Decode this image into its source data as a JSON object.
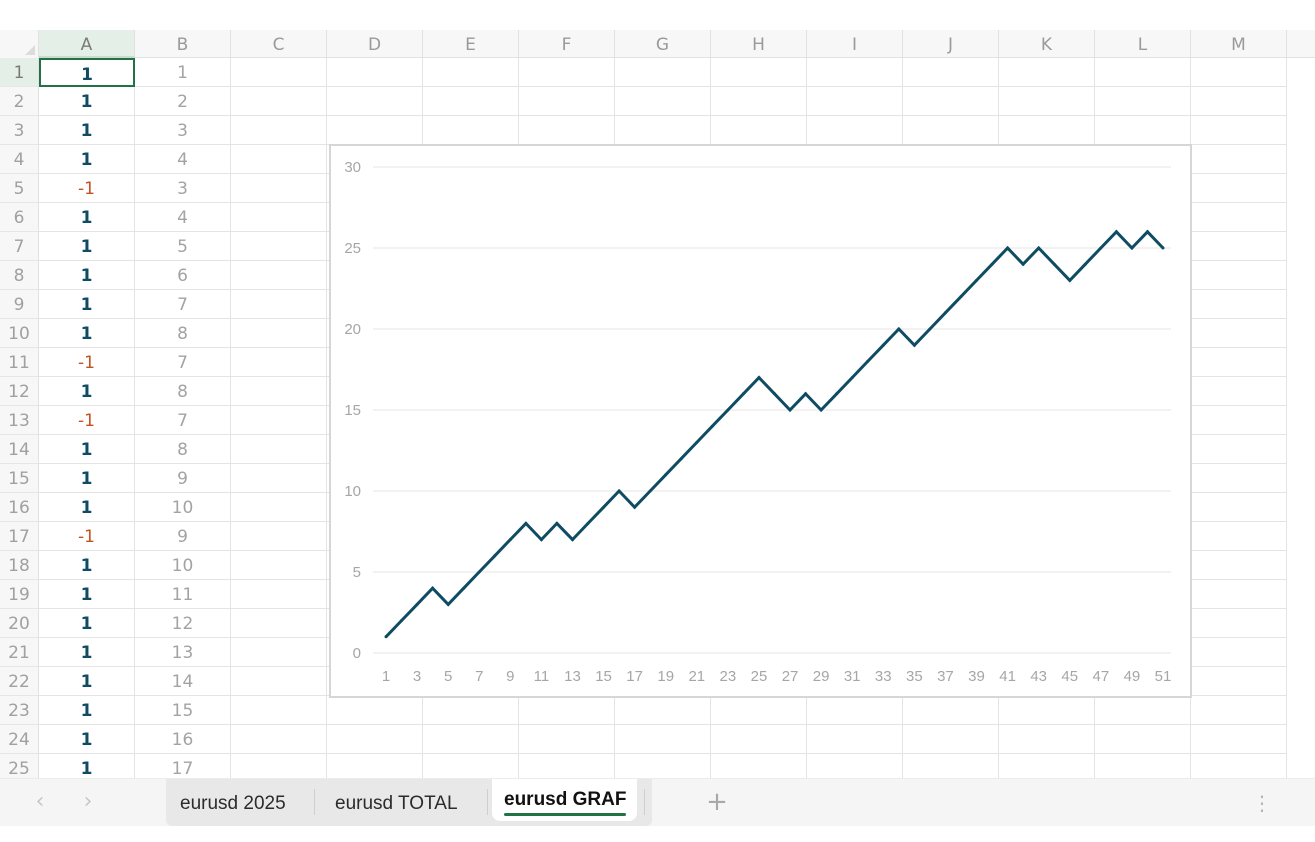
{
  "columns": [
    "A",
    "B",
    "C",
    "D",
    "E",
    "F",
    "G",
    "H",
    "I",
    "J",
    "K",
    "L",
    "M"
  ],
  "rows": [
    {
      "n": "1",
      "a": "1",
      "b": "1"
    },
    {
      "n": "2",
      "a": "1",
      "b": "2"
    },
    {
      "n": "3",
      "a": "1",
      "b": "3"
    },
    {
      "n": "4",
      "a": "1",
      "b": "4"
    },
    {
      "n": "5",
      "a": "-1",
      "b": "3"
    },
    {
      "n": "6",
      "a": "1",
      "b": "4"
    },
    {
      "n": "7",
      "a": "1",
      "b": "5"
    },
    {
      "n": "8",
      "a": "1",
      "b": "6"
    },
    {
      "n": "9",
      "a": "1",
      "b": "7"
    },
    {
      "n": "10",
      "a": "1",
      "b": "8"
    },
    {
      "n": "11",
      "a": "-1",
      "b": "7"
    },
    {
      "n": "12",
      "a": "1",
      "b": "8"
    },
    {
      "n": "13",
      "a": "-1",
      "b": "7"
    },
    {
      "n": "14",
      "a": "1",
      "b": "8"
    },
    {
      "n": "15",
      "a": "1",
      "b": "9"
    },
    {
      "n": "16",
      "a": "1",
      "b": "10"
    },
    {
      "n": "17",
      "a": "-1",
      "b": "9"
    },
    {
      "n": "18",
      "a": "1",
      "b": "10"
    },
    {
      "n": "19",
      "a": "1",
      "b": "11"
    },
    {
      "n": "20",
      "a": "1",
      "b": "12"
    },
    {
      "n": "21",
      "a": "1",
      "b": "13"
    },
    {
      "n": "22",
      "a": "1",
      "b": "14"
    },
    {
      "n": "23",
      "a": "1",
      "b": "15"
    },
    {
      "n": "24",
      "a": "1",
      "b": "16"
    },
    {
      "n": "25",
      "a": "1",
      "b": "17"
    }
  ],
  "selection": {
    "cell": "A1"
  },
  "chart_data": {
    "type": "line",
    "x": [
      1,
      2,
      3,
      4,
      5,
      6,
      7,
      8,
      9,
      10,
      11,
      12,
      13,
      14,
      15,
      16,
      17,
      18,
      19,
      20,
      21,
      22,
      23,
      24,
      25,
      26,
      27,
      28,
      29,
      30,
      31,
      32,
      33,
      34,
      35,
      36,
      37,
      38,
      39,
      40,
      41,
      42,
      43,
      44,
      45,
      46,
      47,
      48,
      49,
      50,
      51
    ],
    "x_tick_labels": [
      "1",
      "3",
      "5",
      "7",
      "9",
      "11",
      "13",
      "15",
      "17",
      "19",
      "21",
      "23",
      "25",
      "27",
      "29",
      "31",
      "33",
      "35",
      "37",
      "39",
      "41",
      "43",
      "45",
      "47",
      "49",
      "51"
    ],
    "y_ticks": [
      "0",
      "5",
      "10",
      "15",
      "20",
      "25",
      "30"
    ],
    "ylim": [
      0,
      30
    ],
    "series": [
      {
        "values": [
          1,
          2,
          3,
          4,
          3,
          4,
          5,
          6,
          7,
          8,
          7,
          8,
          7,
          8,
          9,
          10,
          9,
          10,
          11,
          12,
          13,
          14,
          15,
          16,
          17,
          16,
          15,
          16,
          15,
          16,
          17,
          18,
          19,
          20,
          19,
          20,
          21,
          22,
          23,
          24,
          25,
          24,
          25,
          24,
          23,
          24,
          25,
          26,
          25,
          26,
          25
        ],
        "color": "#0f4c63"
      }
    ],
    "title": "",
    "xlabel": "",
    "ylabel": "",
    "grid": true,
    "legend": "none"
  },
  "sheet_tabs": [
    {
      "label": "eurusd 2025",
      "active": false
    },
    {
      "label": "eurusd TOTAL",
      "active": false
    },
    {
      "label": "eurusd GRAF",
      "active": true
    }
  ],
  "tab_bar": {
    "add_label": "+",
    "prev_label": "‹",
    "next_label": "›",
    "more_label": "⋮"
  },
  "colors": {
    "accent": "#217346",
    "positive": "#0f4c63",
    "negative": "#c2521f",
    "series": "#0f4c63"
  }
}
